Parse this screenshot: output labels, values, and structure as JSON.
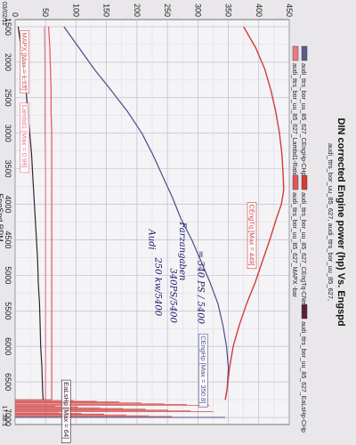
{
  "chart_data": {
    "type": "line",
    "title": "DIN corrected Engine power (hp) Vs. Engspd",
    "subtitle": "audi_ttrs_bor_uu_85_627, audi_ttrs_bor_uu_85_627,",
    "xlabel": "EngSpd RPM",
    "xlabel2": "(Sorted)",
    "footer": "SuperFlow WinDyn™ V3.2",
    "date": "03/02/11",
    "time": "17:38:1",
    "xlim": [
      1400,
      7100
    ],
    "ylim": [
      0,
      450
    ],
    "x_ticks": [
      "1500",
      "2000",
      "2500",
      "3000",
      "3500",
      "4000",
      "4500",
      "5000",
      "5500",
      "6000",
      "6500",
      "7000"
    ],
    "y_ticks": [
      "0",
      "50",
      "100",
      "150",
      "200",
      "250",
      "300",
      "350",
      "400",
      "450"
    ],
    "legend": [
      {
        "name": "audi_ttrs_bor_uu_85_627_CEngHp-CHp",
        "color": "#5a5c8e"
      },
      {
        "name": "audi_ttrs_bor_uu_85_627_CEngTq-CNm",
        "color": "#d43b3b"
      },
      {
        "name": "audi_ttrs_bor_uu_85_627_EaLsHp-CHp",
        "color": "#5a2338"
      },
      {
        "name": "audi_ttrs_bor_uu_85_627_Lambd1-Ratio",
        "color": "#e87a8a"
      },
      {
        "name": "audi_ttrs_bor_uu_85_627_MAPX -bar",
        "color": "#e05555"
      }
    ],
    "series": [
      {
        "name": "CEngHp",
        "color": "#4b4f86",
        "x": [
          1500,
          1800,
          2100,
          2400,
          2700,
          3000,
          3300,
          3600,
          3900,
          4200,
          4500,
          4800,
          5100,
          5400,
          5700,
          6000,
          6300,
          6600,
          6750
        ],
        "y": [
          80,
          105,
          130,
          158,
          185,
          208,
          226,
          242,
          258,
          272,
          290,
          305,
          320,
          333,
          341,
          347,
          350,
          348,
          345
        ]
      },
      {
        "name": "CEngTq",
        "color": "#d43b3b",
        "x": [
          1500,
          1800,
          2100,
          2400,
          2700,
          3000,
          3300,
          3600,
          3800,
          4000,
          4200,
          4500,
          4800,
          5100,
          5400,
          5700,
          6000,
          6300,
          6600,
          6750
        ],
        "y": [
          375,
          395,
          410,
          420,
          428,
          434,
          438,
          440,
          441,
          437,
          429,
          418,
          406,
          394,
          380,
          368,
          358,
          352,
          348,
          345
        ]
      },
      {
        "name": "MAPX",
        "color": "#e05555",
        "x": [
          1500,
          1800,
          2100,
          2400,
          2700,
          3000,
          3300,
          3600,
          4000,
          4500,
          5000,
          5500,
          6000,
          6500,
          6750
        ],
        "y": [
          55,
          57,
          58,
          59,
          59,
          60,
          60,
          60,
          60,
          60,
          60,
          60,
          60,
          60,
          60
        ]
      },
      {
        "name": "Lambd1",
        "color": "#e87a8a",
        "x": [
          1500,
          2000,
          2500,
          3000,
          3500,
          4000,
          4500,
          5000,
          5500,
          6000,
          6500,
          6750
        ],
        "y": [
          48,
          49,
          49,
          49,
          50,
          50,
          50,
          50,
          50,
          50,
          50,
          50
        ]
      },
      {
        "name": "EaLsHp",
        "color": "#3a2030",
        "x": [
          1500,
          1800,
          2100,
          2400,
          2700,
          3000,
          3300,
          3600,
          3900,
          4200,
          4500,
          4800,
          5100,
          5400,
          5700,
          6000,
          6300,
          6600,
          6750
        ],
        "y": [
          5,
          10,
          14,
          18,
          21,
          24,
          27,
          29,
          31,
          33,
          35,
          37,
          38,
          40,
          41,
          42,
          44,
          45,
          46
        ]
      }
    ],
    "annotations": {
      "max_labels": [
        {
          "text": "CEngTq [Max = 449]",
          "x": 4000,
          "y": 385,
          "color": "#d43b3b"
        },
        {
          "text": "CEngHp [Max = 350.8]",
          "x": 5850,
          "y": 305,
          "color": "#4b4f86"
        },
        {
          "text": "EaLsHp [Max = 64]",
          "x": 6500,
          "y": 80,
          "color": "#3a2030"
        },
        {
          "text": "MAPX [Max = 1.13]",
          "x": 1580,
          "y": 12,
          "color": "#e05555"
        },
        {
          "text": "Lambd1 [Max = 0.99]",
          "x": 2600,
          "y": 12,
          "color": "#e87a8a"
        }
      ],
      "handwritten": [
        {
          "text": "340PS/5400",
          "x": 4900,
          "y": 255
        },
        {
          "text": "Audi",
          "x": 4350,
          "y": 220
        },
        {
          "text": "Farzangaben",
          "x": 4250,
          "y": 270
        },
        {
          "text": "250 kw/5400",
          "x": 4750,
          "y": 230
        },
        {
          "text": "= 340 PS / 5400",
          "x": 4650,
          "y": 300
        }
      ]
    }
  }
}
